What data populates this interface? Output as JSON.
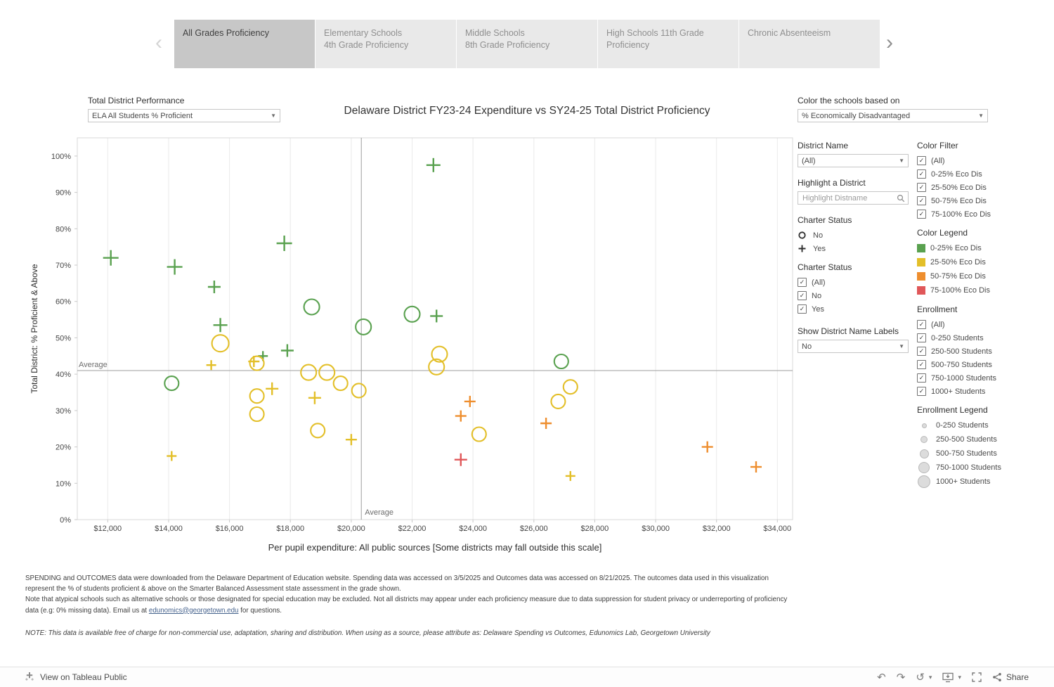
{
  "tabs": {
    "prev_icon": "‹",
    "next_icon": "›",
    "items": [
      {
        "line1": "All Grades Proficiency",
        "line2": "",
        "active": true
      },
      {
        "line1": "Elementary Schools",
        "line2": "4th Grade Proficiency",
        "active": false
      },
      {
        "line1": "Middle Schools",
        "line2": "8th Grade Proficiency",
        "active": false
      },
      {
        "line1": "High Schools 11th Grade",
        "line2": "Proficiency",
        "active": false
      },
      {
        "line1": "Chronic Absenteeism",
        "line2": "",
        "active": false
      }
    ]
  },
  "controls": {
    "performance": {
      "label": "Total District Performance",
      "value": "ELA All Students % Proficient"
    },
    "color_by": {
      "label": "Color the schools based on",
      "value": "% Economically Disadvantaged"
    }
  },
  "filters": {
    "district_name": {
      "label": "District Name",
      "value": "(All)"
    },
    "highlight": {
      "label": "Highlight a District",
      "placeholder": "Highlight Distname"
    },
    "charter_legend": {
      "label": "Charter Status",
      "items": [
        {
          "shape": "circle",
          "label": "No"
        },
        {
          "shape": "plus",
          "label": "Yes"
        }
      ]
    },
    "charter_filter": {
      "label": "Charter Status",
      "items": [
        {
          "label": "(All)",
          "checked": true
        },
        {
          "label": "No",
          "checked": true
        },
        {
          "label": "Yes",
          "checked": true
        }
      ]
    },
    "show_labels": {
      "label": "Show District  Name Labels",
      "value": "No"
    },
    "color_filter": {
      "label": "Color Filter",
      "items": [
        {
          "label": "(All)",
          "checked": true
        },
        {
          "label": "0-25% Eco Dis",
          "checked": true
        },
        {
          "label": "25-50% Eco Dis",
          "checked": true
        },
        {
          "label": "50-75% Eco Dis",
          "checked": true
        },
        {
          "label": "75-100% Eco Dis",
          "checked": true
        }
      ]
    },
    "color_legend": {
      "label": "Color Legend",
      "items": [
        {
          "label": "0-25% Eco Dis",
          "color": "#59a14f"
        },
        {
          "label": "25-50% Eco Dis",
          "color": "#e3bf29"
        },
        {
          "label": "50-75% Eco Dis",
          "color": "#ee8e2e"
        },
        {
          "label": "75-100% Eco Dis",
          "color": "#e05759"
        }
      ]
    },
    "enrollment_filter": {
      "label": "Enrollment",
      "items": [
        {
          "label": "(All)",
          "checked": true
        },
        {
          "label": "0-250 Students",
          "checked": true
        },
        {
          "label": "250-500 Students",
          "checked": true
        },
        {
          "label": "500-750 Students",
          "checked": true
        },
        {
          "label": "750-1000 Students",
          "checked": true
        },
        {
          "label": "1000+ Students",
          "checked": true
        }
      ]
    },
    "enrollment_legend": {
      "label": "Enrollment Legend",
      "items": [
        {
          "label": "0-250 Students",
          "size": 7
        },
        {
          "label": "250-500 Students",
          "size": 10
        },
        {
          "label": "500-750 Students",
          "size": 13
        },
        {
          "label": "750-1000 Students",
          "size": 16
        },
        {
          "label": "1000+ Students",
          "size": 18
        }
      ]
    }
  },
  "chart_data": {
    "type": "scatter",
    "title": "Delaware District FY23-24 Expenditure vs SY24-25 Total District Proficiency",
    "xlabel": "Per pupil expenditure: All public sources [Some districts may fall outside this scale]",
    "ylabel": "Total District: % Proficient & Above",
    "xlim": [
      11000,
      34500
    ],
    "ylim": [
      0,
      105
    ],
    "x_ticks": [
      12000,
      14000,
      16000,
      18000,
      20000,
      22000,
      24000,
      26000,
      28000,
      30000,
      32000,
      34000
    ],
    "y_ticks": [
      0,
      10,
      20,
      30,
      40,
      50,
      60,
      70,
      80,
      90,
      100
    ],
    "x_average": 20330,
    "y_average": 41,
    "average_label": "Average",
    "grid": "vertical",
    "legend_position": "right-panel",
    "shape_encoding": {
      "circle": "Charter: No",
      "plus": "Charter: Yes"
    },
    "size_encoding": "Enrollment",
    "groups": {
      "0-25% Eco Dis": "#59a14f",
      "25-50% Eco Dis": "#e3bf29",
      "50-75% Eco Dis": "#ee8e2e",
      "75-100% Eco Dis": "#e05759"
    },
    "points": [
      {
        "x": 12100,
        "y": 72,
        "group": "0-25% Eco Dis",
        "charter": "Yes",
        "size": 11
      },
      {
        "x": 14200,
        "y": 69.5,
        "group": "0-25% Eco Dis",
        "charter": "Yes",
        "size": 11
      },
      {
        "x": 15500,
        "y": 64,
        "group": "0-25% Eco Dis",
        "charter": "Yes",
        "size": 9
      },
      {
        "x": 17800,
        "y": 76,
        "group": "0-25% Eco Dis",
        "charter": "Yes",
        "size": 11
      },
      {
        "x": 15700,
        "y": 53.5,
        "group": "0-25% Eco Dis",
        "charter": "Yes",
        "size": 10
      },
      {
        "x": 17100,
        "y": 45,
        "group": "0-25% Eco Dis",
        "charter": "Yes",
        "size": 7
      },
      {
        "x": 17900,
        "y": 46.5,
        "group": "0-25% Eco Dis",
        "charter": "Yes",
        "size": 9
      },
      {
        "x": 22700,
        "y": 97.5,
        "group": "0-25% Eco Dis",
        "charter": "Yes",
        "size": 10
      },
      {
        "x": 22800,
        "y": 56,
        "group": "0-25% Eco Dis",
        "charter": "Yes",
        "size": 9
      },
      {
        "x": 14100,
        "y": 37.5,
        "group": "0-25% Eco Dis",
        "charter": "No",
        "size": 10
      },
      {
        "x": 18700,
        "y": 58.5,
        "group": "0-25% Eco Dis",
        "charter": "No",
        "size": 11
      },
      {
        "x": 20400,
        "y": 53,
        "group": "0-25% Eco Dis",
        "charter": "No",
        "size": 11
      },
      {
        "x": 22000,
        "y": 56.5,
        "group": "0-25% Eco Dis",
        "charter": "No",
        "size": 11
      },
      {
        "x": 26900,
        "y": 43.5,
        "group": "0-25% Eco Dis",
        "charter": "No",
        "size": 10
      },
      {
        "x": 15700,
        "y": 48.5,
        "group": "25-50% Eco Dis",
        "charter": "No",
        "size": 12
      },
      {
        "x": 16900,
        "y": 43,
        "group": "25-50% Eco Dis",
        "charter": "No",
        "size": 10
      },
      {
        "x": 16900,
        "y": 34,
        "group": "25-50% Eco Dis",
        "charter": "No",
        "size": 10
      },
      {
        "x": 16900,
        "y": 29,
        "group": "25-50% Eco Dis",
        "charter": "No",
        "size": 10
      },
      {
        "x": 18600,
        "y": 40.5,
        "group": "25-50% Eco Dis",
        "charter": "No",
        "size": 11
      },
      {
        "x": 19200,
        "y": 40.5,
        "group": "25-50% Eco Dis",
        "charter": "No",
        "size": 11
      },
      {
        "x": 19650,
        "y": 37.5,
        "group": "25-50% Eco Dis",
        "charter": "No",
        "size": 10
      },
      {
        "x": 20250,
        "y": 35.5,
        "group": "25-50% Eco Dis",
        "charter": "No",
        "size": 10
      },
      {
        "x": 18900,
        "y": 24.5,
        "group": "25-50% Eco Dis",
        "charter": "No",
        "size": 10
      },
      {
        "x": 22900,
        "y": 45.5,
        "group": "25-50% Eco Dis",
        "charter": "No",
        "size": 11
      },
      {
        "x": 22800,
        "y": 42,
        "group": "25-50% Eco Dis",
        "charter": "No",
        "size": 11
      },
      {
        "x": 24200,
        "y": 23.5,
        "group": "25-50% Eco Dis",
        "charter": "No",
        "size": 10
      },
      {
        "x": 26800,
        "y": 32.5,
        "group": "25-50% Eco Dis",
        "charter": "No",
        "size": 10
      },
      {
        "x": 27200,
        "y": 36.5,
        "group": "25-50% Eco Dis",
        "charter": "No",
        "size": 10
      },
      {
        "x": 15400,
        "y": 42.5,
        "group": "25-50% Eco Dis",
        "charter": "Yes",
        "size": 7
      },
      {
        "x": 16800,
        "y": 43.5,
        "group": "25-50% Eco Dis",
        "charter": "Yes",
        "size": 8
      },
      {
        "x": 17400,
        "y": 36,
        "group": "25-50% Eco Dis",
        "charter": "Yes",
        "size": 9
      },
      {
        "x": 18800,
        "y": 33.5,
        "group": "25-50% Eco Dis",
        "charter": "Yes",
        "size": 9
      },
      {
        "x": 14100,
        "y": 17.5,
        "group": "25-50% Eco Dis",
        "charter": "Yes",
        "size": 7
      },
      {
        "x": 20000,
        "y": 22,
        "group": "25-50% Eco Dis",
        "charter": "Yes",
        "size": 8
      },
      {
        "x": 27200,
        "y": 12,
        "group": "25-50% Eco Dis",
        "charter": "Yes",
        "size": 7
      },
      {
        "x": 23900,
        "y": 32.5,
        "group": "50-75% Eco Dis",
        "charter": "Yes",
        "size": 8
      },
      {
        "x": 23600,
        "y": 28.5,
        "group": "50-75% Eco Dis",
        "charter": "Yes",
        "size": 8
      },
      {
        "x": 26400,
        "y": 26.5,
        "group": "50-75% Eco Dis",
        "charter": "Yes",
        "size": 8
      },
      {
        "x": 31700,
        "y": 20,
        "group": "50-75% Eco Dis",
        "charter": "Yes",
        "size": 8
      },
      {
        "x": 33300,
        "y": 14.5,
        "group": "50-75% Eco Dis",
        "charter": "Yes",
        "size": 8
      },
      {
        "x": 23600,
        "y": 16.5,
        "group": "75-100% Eco Dis",
        "charter": "Yes",
        "size": 9
      }
    ]
  },
  "footer": {
    "para1": "SPENDING and OUTCOMES data were downloaded from the Delaware Department of Education website. Spending data was accessed on 3/5/2025 and Outcomes data was accessed on 8/21/2025. The outcomes data used in this visualization represent the % of students proficient & above on the Smarter Balanced Assessment state assessment in the grade shown.",
    "para2_pre": "Note that atypical schools such as alternative schools or those designated for special education may be excluded. Not all districts may appear under each proficiency measure due to data suppression for student privacy or underreporting of proficiency data (e.g: 0% missing data). Email us at ",
    "para2_link": "edunomics@georgetown.edu",
    "para2_post": " for questions.",
    "note": "NOTE: This data is available free of charge for non-commercial use, adaptation, sharing and distribution. When using as a source, please attribute as: Delaware Spending vs Outcomes, Edunomics Lab, Georgetown University"
  },
  "toolbar": {
    "view_label": "View on Tableau Public",
    "share_label": "Share"
  }
}
